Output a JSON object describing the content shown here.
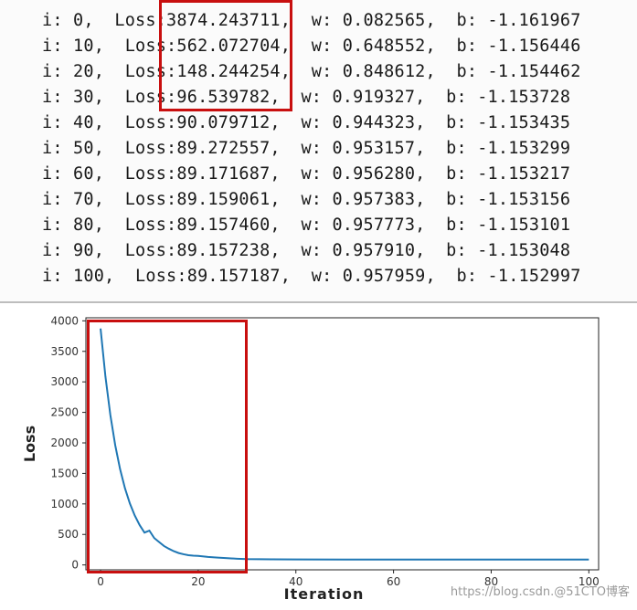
{
  "log": {
    "lines": [
      "i: 0,  Loss:3874.243711,  w: 0.082565,  b: -1.161967",
      "i: 10,  Loss:562.072704,  w: 0.648552,  b: -1.156446",
      "i: 20,  Loss:148.244254,  w: 0.848612,  b: -1.154462",
      "i: 30,  Loss:96.539782,  w: 0.919327,  b: -1.153728",
      "i: 40,  Loss:90.079712,  w: 0.944323,  b: -1.153435",
      "i: 50,  Loss:89.272557,  w: 0.953157,  b: -1.153299",
      "i: 60,  Loss:89.171687,  w: 0.956280,  b: -1.153217",
      "i: 70,  Loss:89.159061,  w: 0.957383,  b: -1.153156",
      "i: 80,  Loss:89.157460,  w: 0.957773,  b: -1.153101",
      "i: 90,  Loss:89.157238,  w: 0.957910,  b: -1.153048",
      "i: 100,  Loss:89.157187,  w: 0.957959,  b: -1.152997"
    ]
  },
  "chart_data": {
    "type": "line",
    "title": "",
    "xlabel": "Iteration",
    "ylabel": "Loss",
    "xlim": [
      -3,
      102
    ],
    "ylim": [
      -80,
      4050
    ],
    "xticks": [
      0,
      20,
      40,
      60,
      80,
      100
    ],
    "yticks": [
      0,
      500,
      1000,
      1500,
      2000,
      2500,
      3000,
      3500,
      4000
    ],
    "grid": false,
    "series": [
      {
        "color": "#1f77b4",
        "x": [
          0,
          1,
          2,
          3,
          4,
          5,
          6,
          7,
          8,
          9,
          10,
          11,
          12,
          13,
          14,
          15,
          16,
          17,
          18,
          19,
          20,
          22,
          24,
          26,
          28,
          30,
          35,
          40,
          50,
          60,
          70,
          80,
          90,
          100
        ],
        "y": [
          3874.24,
          3086,
          2460,
          1963,
          1569,
          1256,
          1008,
          811,
          654,
          530,
          562.07,
          440,
          375,
          310,
          265,
          225,
          195,
          175,
          160,
          152,
          148.24,
          132,
          120,
          110,
          102,
          96.54,
          92,
          90.08,
          89.27,
          89.17,
          89.16,
          89.16,
          89.16,
          89.16
        ]
      }
    ]
  },
  "watermark": "https://blog.csdn.@51CTO博客"
}
